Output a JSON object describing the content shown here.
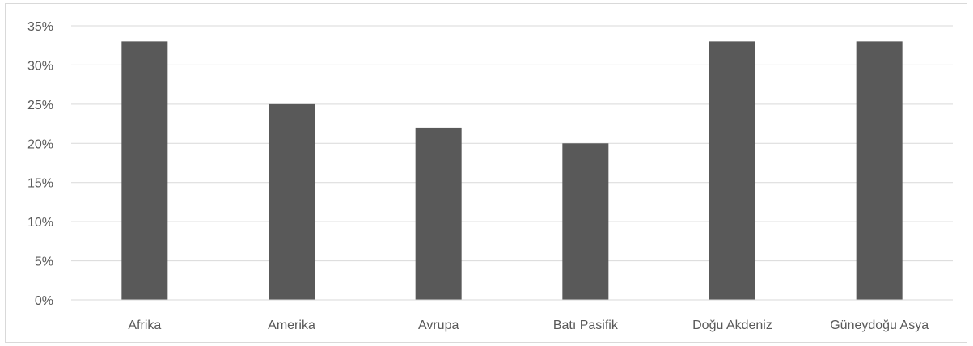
{
  "chart_data": {
    "type": "bar",
    "categories": [
      "Afrika",
      "Amerika",
      "Avrupa",
      "Batı Pasifik",
      "Doğu Akdeniz",
      "Güneydoğu Asya"
    ],
    "values": [
      33,
      25,
      22,
      20,
      33,
      33
    ],
    "yticks": [
      "0%",
      "5%",
      "10%",
      "15%",
      "20%",
      "25%",
      "30%",
      "35%"
    ],
    "ylim": [
      0,
      35
    ],
    "ytick_step": 5,
    "grid": true,
    "legend": "none",
    "bar_color": "#595959",
    "grid_color": "#d9d9d9",
    "axis_color": "#d9d9d9"
  }
}
